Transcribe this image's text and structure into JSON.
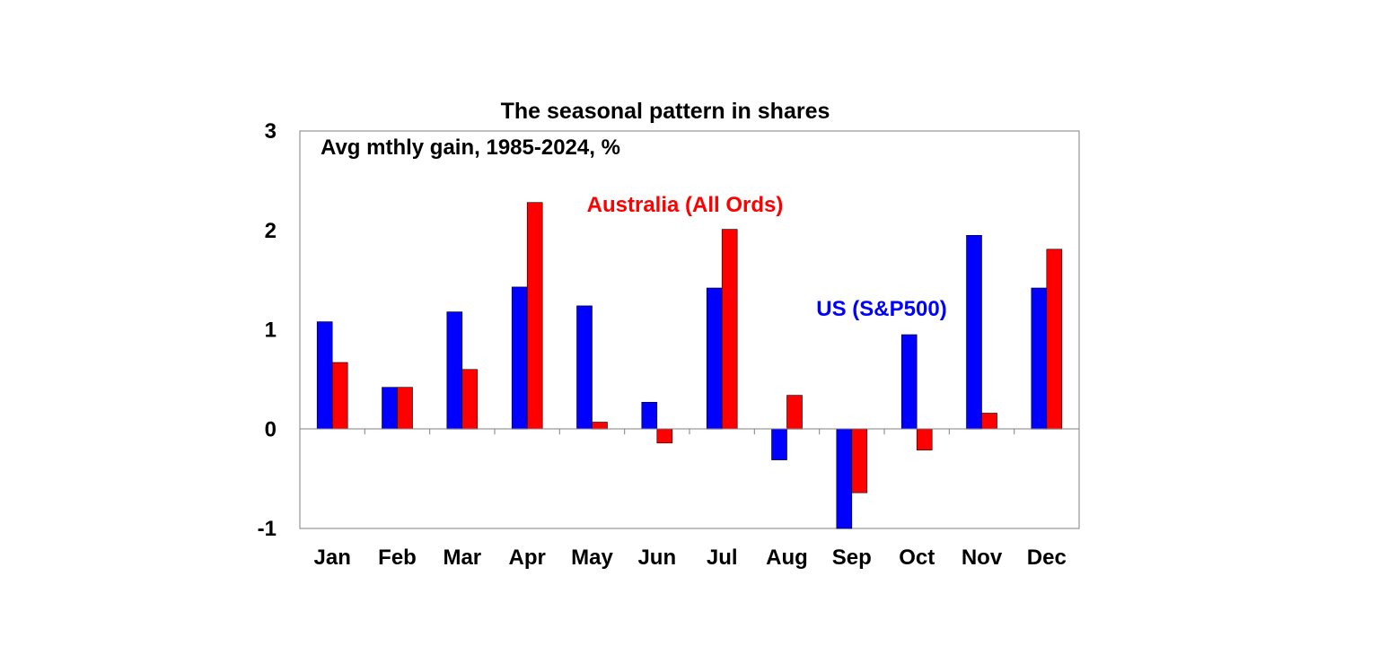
{
  "chart_data": {
    "type": "bar",
    "title": "The seasonal pattern in shares",
    "subtitle": "Avg mthly gain, 1985-2024, %",
    "xlabel": "",
    "ylabel": "",
    "ylim": [
      -1,
      3
    ],
    "yticks": [
      "3",
      "2",
      "1",
      "0",
      "-1"
    ],
    "ytick_values": [
      3,
      2,
      1,
      0,
      -1
    ],
    "categories": [
      "Jan",
      "Feb",
      "Mar",
      "Apr",
      "May",
      "Jun",
      "Jul",
      "Aug",
      "Sep",
      "Oct",
      "Nov",
      "Dec"
    ],
    "grid": false,
    "legend": "inline labels",
    "series": [
      {
        "name": "US (S&P500)",
        "color": "#0000FF",
        "values": [
          1.08,
          0.42,
          1.18,
          1.43,
          1.24,
          0.27,
          1.42,
          -0.31,
          -1.0,
          0.95,
          1.95,
          1.42
        ]
      },
      {
        "name": "Australia (All Ords)",
        "color": "#FF0000",
        "values": [
          0.67,
          0.42,
          0.6,
          2.28,
          0.07,
          -0.14,
          2.01,
          0.34,
          -0.64,
          -0.21,
          0.16,
          1.81
        ]
      }
    ]
  }
}
